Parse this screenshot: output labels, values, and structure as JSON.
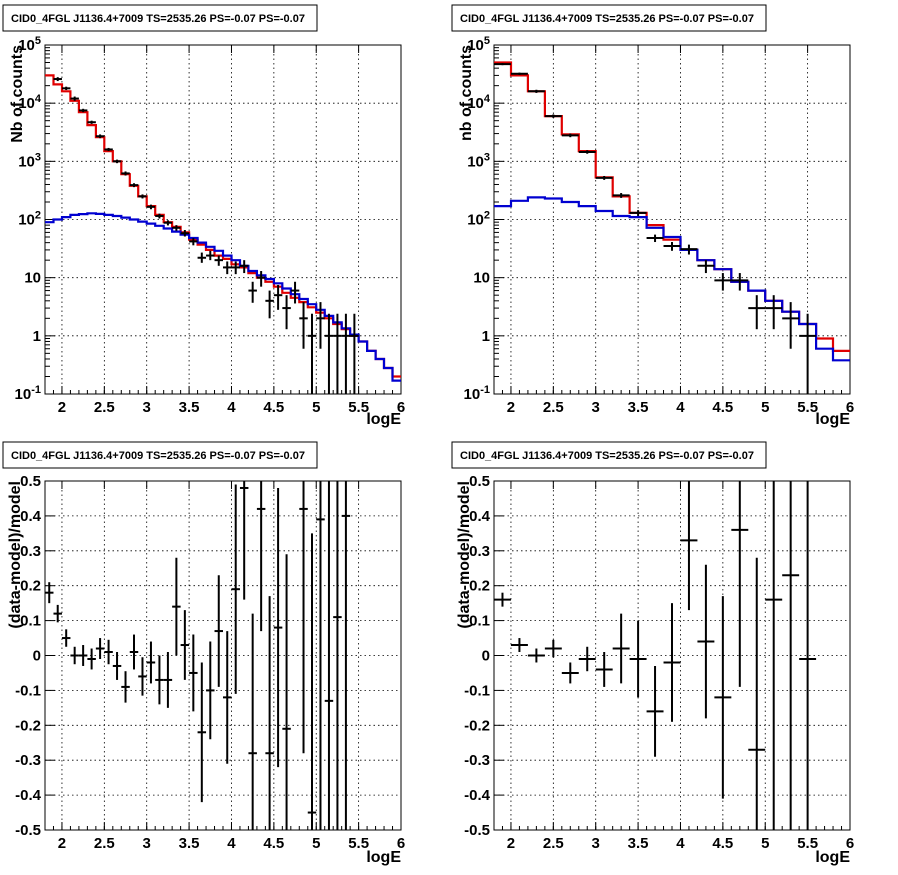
{
  "colors": {
    "data": "#000000",
    "total_model": "#e00000",
    "source_model": "#0000d0"
  },
  "panels": [
    {
      "title": "CID0_4FGL J1136.4+7009 TS=2535.26 PS=-0.07 PS=-0.07",
      "xlabel": "logE",
      "ylabel": "Nb of counts"
    },
    {
      "title": "CID0_4FGL J1136.4+7009 TS=2535.26 PS=-0.07 PS=-0.07",
      "xlabel": "logE",
      "ylabel": "nb of counts"
    },
    {
      "title": "CID0_4FGL J1136.4+7009 TS=2535.26 PS=-0.07 PS=-0.07",
      "xlabel": "logE",
      "ylabel": "(data-model)/model"
    },
    {
      "title": "CID0_4FGL J1136.4+7009 TS=2535.26 PS=-0.07 PS=-0.07",
      "xlabel": "logE",
      "ylabel": "(data-model)/model"
    }
  ],
  "chart_data": [
    {
      "type": "line",
      "title": "CID0_4FGL J1136.4+7009 TS=2535.26 PS=-0.07 PS=-0.07",
      "xlabel": "logE",
      "ylabel": "Nb of counts",
      "xlim": [
        1.8,
        6.0
      ],
      "ylim": [
        0.1,
        100000
      ],
      "ylog": true,
      "grid": true,
      "x_ticks": [
        "2",
        "2.5",
        "3",
        "3.5",
        "4",
        "4.5",
        "5",
        "5.5",
        "6"
      ],
      "y_ticks": [
        "10^-1",
        "1",
        "10",
        "10^2",
        "10^3",
        "10^4",
        "10^5"
      ],
      "bin_width": 0.1,
      "x": [
        1.8,
        1.9,
        2.0,
        2.1,
        2.2,
        2.3,
        2.4,
        2.5,
        2.6,
        2.7,
        2.8,
        2.9,
        3.0,
        3.1,
        3.2,
        3.3,
        3.4,
        3.5,
        3.6,
        3.7,
        3.8,
        3.9,
        4.0,
        4.1,
        4.2,
        4.3,
        4.4,
        4.5,
        4.6,
        4.7,
        4.8,
        4.9,
        5.0,
        5.1,
        5.2,
        5.3,
        5.4,
        5.5,
        5.6,
        5.7,
        5.8,
        5.9
      ],
      "series": [
        {
          "style": "histogram",
          "color": "#e00000",
          "values": [
            30000,
            21000,
            16000,
            11000,
            7000,
            4200,
            2600,
            1500,
            1000,
            600,
            380,
            250,
            170,
            120,
            90,
            75,
            60,
            45,
            37,
            30,
            24,
            21,
            17,
            15,
            12,
            10,
            8.5,
            7,
            5.5,
            4.5,
            3.8,
            3.1,
            2.5,
            2.0,
            1.6,
            1.3,
            1.0,
            0.8,
            0.55,
            0.4,
            0.28,
            0.2
          ]
        },
        {
          "style": "histogram",
          "color": "#0000d0",
          "values": [
            90,
            100,
            110,
            120,
            124,
            128,
            125,
            120,
            115,
            108,
            100,
            92,
            85,
            78,
            70,
            62,
            55,
            48,
            40,
            34,
            29,
            24,
            20,
            16,
            13,
            11,
            9.5,
            8,
            6.5,
            5.2,
            4.3,
            3.5,
            2.8,
            2.2,
            1.7,
            1.35,
            1.05,
            0.8,
            0.55,
            0.4,
            0.28,
            0.17
          ]
        },
        {
          "style": "errorbars",
          "color": "#000000",
          "points": [
            {
              "x": 1.95,
              "y": 26000,
              "lo": 24000,
              "hi": 28000
            },
            {
              "x": 2.05,
              "y": 18000,
              "lo": 16800,
              "hi": 19200
            },
            {
              "x": 2.15,
              "y": 12000,
              "lo": 11000,
              "hi": 13000
            },
            {
              "x": 2.25,
              "y": 7500,
              "lo": 7000,
              "hi": 8000
            },
            {
              "x": 2.35,
              "y": 4700,
              "lo": 4400,
              "hi": 5000
            },
            {
              "x": 2.45,
              "y": 2700,
              "lo": 2500,
              "hi": 2900
            },
            {
              "x": 2.55,
              "y": 1600,
              "lo": 1500,
              "hi": 1700
            },
            {
              "x": 2.65,
              "y": 1000,
              "lo": 930,
              "hi": 1070
            },
            {
              "x": 2.75,
              "y": 620,
              "lo": 570,
              "hi": 670
            },
            {
              "x": 2.85,
              "y": 390,
              "lo": 360,
              "hi": 420
            },
            {
              "x": 2.95,
              "y": 250,
              "lo": 230,
              "hi": 270
            },
            {
              "x": 3.05,
              "y": 165,
              "lo": 150,
              "hi": 180
            },
            {
              "x": 3.15,
              "y": 115,
              "lo": 104,
              "hi": 126
            },
            {
              "x": 3.25,
              "y": 88,
              "lo": 79,
              "hi": 97
            },
            {
              "x": 3.35,
              "y": 72,
              "lo": 64,
              "hi": 80
            },
            {
              "x": 3.45,
              "y": 58,
              "lo": 51,
              "hi": 66
            },
            {
              "x": 3.55,
              "y": 42,
              "lo": 36,
              "hi": 48
            },
            {
              "x": 3.65,
              "y": 22,
              "lo": 18,
              "hi": 27
            },
            {
              "x": 3.75,
              "y": 24,
              "lo": 20,
              "hi": 29
            },
            {
              "x": 3.85,
              "y": 20,
              "lo": 16,
              "hi": 24
            },
            {
              "x": 3.95,
              "y": 15,
              "lo": 11.5,
              "hi": 19
            },
            {
              "x": 4.05,
              "y": 15,
              "lo": 11.5,
              "hi": 19
            },
            {
              "x": 4.15,
              "y": 16,
              "lo": 12,
              "hi": 20
            },
            {
              "x": 4.25,
              "y": 6,
              "lo": 3.7,
              "hi": 8.5
            },
            {
              "x": 4.35,
              "y": 10,
              "lo": 7,
              "hi": 13
            },
            {
              "x": 4.45,
              "y": 4,
              "lo": 2.0,
              "hi": 6
            },
            {
              "x": 4.55,
              "y": 5,
              "lo": 2.8,
              "hi": 7.5
            },
            {
              "x": 4.65,
              "y": 3,
              "lo": 1.3,
              "hi": 5
            },
            {
              "x": 4.75,
              "y": 6,
              "lo": 3.6,
              "hi": 8.5
            },
            {
              "x": 4.85,
              "y": 2,
              "lo": 0.6,
              "hi": 3.8
            },
            {
              "x": 4.95,
              "y": 1,
              "lo": 0.1,
              "hi": 2.4
            },
            {
              "x": 5.05,
              "y": 2,
              "lo": 0.6,
              "hi": 3.8
            },
            {
              "x": 5.15,
              "y": 1,
              "lo": 0.1,
              "hi": 2.4
            },
            {
              "x": 5.25,
              "y": 1,
              "lo": 0.1,
              "hi": 2.4
            },
            {
              "x": 5.35,
              "y": 1,
              "lo": 0.1,
              "hi": 2.4
            },
            {
              "x": 5.45,
              "y": 1,
              "lo": 0.1,
              "hi": 2.4
            }
          ]
        }
      ]
    },
    {
      "type": "line",
      "title": "CID0_4FGL J1136.4+7009 TS=2535.26 PS=-0.07 PS=-0.07",
      "xlabel": "logE",
      "ylabel": "nb of counts",
      "xlim": [
        1.8,
        6.0
      ],
      "ylim": [
        0.1,
        100000
      ],
      "ylog": true,
      "grid": true,
      "x_ticks": [
        "2",
        "2.5",
        "3",
        "3.5",
        "4",
        "4.5",
        "5",
        "5.5",
        "6"
      ],
      "y_ticks": [
        "10^-1",
        "1",
        "10",
        "10^2",
        "10^3",
        "10^4",
        "10^5"
      ],
      "bin_width": 0.2,
      "x": [
        1.8,
        2.0,
        2.2,
        2.4,
        2.6,
        2.8,
        3.0,
        3.2,
        3.4,
        3.6,
        3.8,
        4.0,
        4.2,
        4.4,
        4.6,
        4.8,
        5.0,
        5.2,
        5.4,
        5.6,
        5.8
      ],
      "series": [
        {
          "style": "histogram",
          "color": "#e00000",
          "values": [
            50000,
            30000,
            16000,
            6000,
            2900,
            1500,
            530,
            250,
            130,
            80,
            45,
            30,
            20,
            14,
            8.5,
            6,
            4,
            2.6,
            1.6,
            0.9,
            0.55
          ]
        },
        {
          "style": "histogram",
          "color": "#0000d0",
          "values": [
            170,
            210,
            240,
            230,
            200,
            170,
            140,
            115,
            110,
            72,
            50,
            30,
            20,
            14,
            8.5,
            6,
            4,
            2.6,
            1.6,
            0.6,
            0.38
          ]
        },
        {
          "style": "errorbars",
          "color": "#000000",
          "points": [
            {
              "x": 1.9,
              "y": 47000,
              "lo": 45000,
              "hi": 49000
            },
            {
              "x": 2.1,
              "y": 32000,
              "lo": 30500,
              "hi": 33500
            },
            {
              "x": 2.3,
              "y": 16000,
              "lo": 15000,
              "hi": 17000
            },
            {
              "x": 2.5,
              "y": 6000,
              "lo": 5600,
              "hi": 6400
            },
            {
              "x": 2.7,
              "y": 2800,
              "lo": 2600,
              "hi": 3000
            },
            {
              "x": 2.9,
              "y": 1450,
              "lo": 1350,
              "hi": 1550
            },
            {
              "x": 3.1,
              "y": 520,
              "lo": 480,
              "hi": 560
            },
            {
              "x": 3.3,
              "y": 260,
              "lo": 235,
              "hi": 285
            },
            {
              "x": 3.5,
              "y": 130,
              "lo": 115,
              "hi": 145
            },
            {
              "x": 3.7,
              "y": 48,
              "lo": 41,
              "hi": 55
            },
            {
              "x": 3.9,
              "y": 35,
              "lo": 29,
              "hi": 41
            },
            {
              "x": 4.1,
              "y": 31,
              "lo": 25,
              "hi": 37
            },
            {
              "x": 4.3,
              "y": 16,
              "lo": 12,
              "hi": 20
            },
            {
              "x": 4.5,
              "y": 9,
              "lo": 6,
              "hi": 12
            },
            {
              "x": 4.7,
              "y": 9,
              "lo": 6,
              "hi": 12
            },
            {
              "x": 4.9,
              "y": 3,
              "lo": 1.3,
              "hi": 5
            },
            {
              "x": 5.1,
              "y": 3,
              "lo": 1.3,
              "hi": 5
            },
            {
              "x": 5.3,
              "y": 2,
              "lo": 0.6,
              "hi": 3.8
            },
            {
              "x": 5.5,
              "y": 1,
              "lo": 0.1,
              "hi": 2.4
            }
          ]
        }
      ]
    },
    {
      "type": "scatter",
      "title": "CID0_4FGL J1136.4+7009 TS=2535.26 PS=-0.07 PS=-0.07",
      "xlabel": "logE",
      "ylabel": "(data-model)/model",
      "xlim": [
        1.8,
        6.0
      ],
      "ylim": [
        -0.5,
        0.5
      ],
      "grid": true,
      "x_ticks": [
        "2",
        "2.5",
        "3",
        "3.5",
        "4",
        "4.5",
        "5",
        "5.5",
        "6"
      ],
      "y_ticks": [
        "-0.5",
        "-0.4",
        "-0.3",
        "-0.2",
        "-0.1",
        "0",
        "0.1",
        "0.2",
        "0.3",
        "0.4",
        "0.5"
      ],
      "bin_width": 0.1,
      "points": [
        {
          "x": 1.85,
          "y": 0.18,
          "err": 0.03
        },
        {
          "x": 1.95,
          "y": 0.12,
          "err": 0.025
        },
        {
          "x": 2.05,
          "y": 0.05,
          "err": 0.025
        },
        {
          "x": 2.15,
          "y": 0.0,
          "err": 0.025
        },
        {
          "x": 2.25,
          "y": 0.0,
          "err": 0.03
        },
        {
          "x": 2.35,
          "y": -0.01,
          "err": 0.03
        },
        {
          "x": 2.45,
          "y": 0.02,
          "err": 0.03
        },
        {
          "x": 2.55,
          "y": 0.01,
          "err": 0.035
        },
        {
          "x": 2.65,
          "y": -0.03,
          "err": 0.04
        },
        {
          "x": 2.75,
          "y": -0.09,
          "err": 0.045
        },
        {
          "x": 2.85,
          "y": 0.01,
          "err": 0.05
        },
        {
          "x": 2.95,
          "y": -0.06,
          "err": 0.055
        },
        {
          "x": 3.05,
          "y": -0.02,
          "err": 0.06
        },
        {
          "x": 3.15,
          "y": -0.07,
          "err": 0.07
        },
        {
          "x": 3.25,
          "y": -0.07,
          "err": 0.08
        },
        {
          "x": 3.35,
          "y": 0.14,
          "err": 0.14
        },
        {
          "x": 3.45,
          "y": 0.03,
          "err": 0.1
        },
        {
          "x": 3.55,
          "y": -0.05,
          "err": 0.11
        },
        {
          "x": 3.65,
          "y": -0.22,
          "err": 0.2
        },
        {
          "x": 3.75,
          "y": -0.1,
          "err": 0.14
        },
        {
          "x": 3.85,
          "y": 0.07,
          "err": 0.16
        },
        {
          "x": 3.95,
          "y": -0.12,
          "err": 0.19
        },
        {
          "x": 4.05,
          "y": 0.19,
          "err": 0.3
        },
        {
          "x": 4.15,
          "y": 0.48,
          "err": 0.32
        },
        {
          "x": 4.25,
          "y": -0.28,
          "err": 0.4
        },
        {
          "x": 4.35,
          "y": 0.42,
          "err": 0.35
        },
        {
          "x": 4.45,
          "y": -0.28,
          "err": 0.45
        },
        {
          "x": 4.55,
          "y": 0.08,
          "err": 0.4
        },
        {
          "x": 4.65,
          "y": -0.21,
          "err": 0.5
        },
        {
          "x": 4.85,
          "y": 0.42,
          "err": 0.7
        },
        {
          "x": 4.95,
          "y": -0.45,
          "err": 0.8
        },
        {
          "x": 5.05,
          "y": 0.39,
          "err": 0.9
        },
        {
          "x": 5.15,
          "y": -0.13,
          "err": 0.9
        },
        {
          "x": 5.25,
          "y": 0.11,
          "err": 1.0
        },
        {
          "x": 5.35,
          "y": 0.4,
          "err": 1.0
        }
      ]
    },
    {
      "type": "scatter",
      "title": "CID0_4FGL J1136.4+7009 TS=2535.26 PS=-0.07 PS=-0.07",
      "xlabel": "logE",
      "ylabel": "(data-model)/model",
      "xlim": [
        1.8,
        6.0
      ],
      "ylim": [
        -0.5,
        0.5
      ],
      "grid": true,
      "x_ticks": [
        "2",
        "2.5",
        "3",
        "3.5",
        "4",
        "4.5",
        "5",
        "5.5",
        "6"
      ],
      "y_ticks": [
        "-0.5",
        "-0.4",
        "-0.3",
        "-0.2",
        "-0.1",
        "0",
        "0.1",
        "0.2",
        "0.3",
        "0.4",
        "0.5"
      ],
      "bin_width": 0.2,
      "points": [
        {
          "x": 1.9,
          "y": 0.16,
          "err": 0.02
        },
        {
          "x": 2.1,
          "y": 0.03,
          "err": 0.02
        },
        {
          "x": 2.3,
          "y": 0.0,
          "err": 0.02
        },
        {
          "x": 2.5,
          "y": 0.02,
          "err": 0.025
        },
        {
          "x": 2.7,
          "y": -0.05,
          "err": 0.03
        },
        {
          "x": 2.9,
          "y": -0.01,
          "err": 0.035
        },
        {
          "x": 3.1,
          "y": -0.04,
          "err": 0.05
        },
        {
          "x": 3.3,
          "y": 0.02,
          "err": 0.1
        },
        {
          "x": 3.5,
          "y": -0.01,
          "err": 0.11
        },
        {
          "x": 3.7,
          "y": -0.16,
          "err": 0.13
        },
        {
          "x": 3.9,
          "y": -0.02,
          "err": 0.17
        },
        {
          "x": 4.1,
          "y": 0.33,
          "err": 0.2
        },
        {
          "x": 4.3,
          "y": 0.04,
          "err": 0.22
        },
        {
          "x": 4.5,
          "y": -0.12,
          "err": 0.29
        },
        {
          "x": 4.7,
          "y": 0.36,
          "err": 0.45
        },
        {
          "x": 4.9,
          "y": -0.27,
          "err": 0.55
        },
        {
          "x": 5.1,
          "y": 0.16,
          "err": 0.7
        },
        {
          "x": 5.3,
          "y": 0.23,
          "err": 0.9
        },
        {
          "x": 5.5,
          "y": -0.01,
          "err": 1.0
        }
      ]
    }
  ]
}
